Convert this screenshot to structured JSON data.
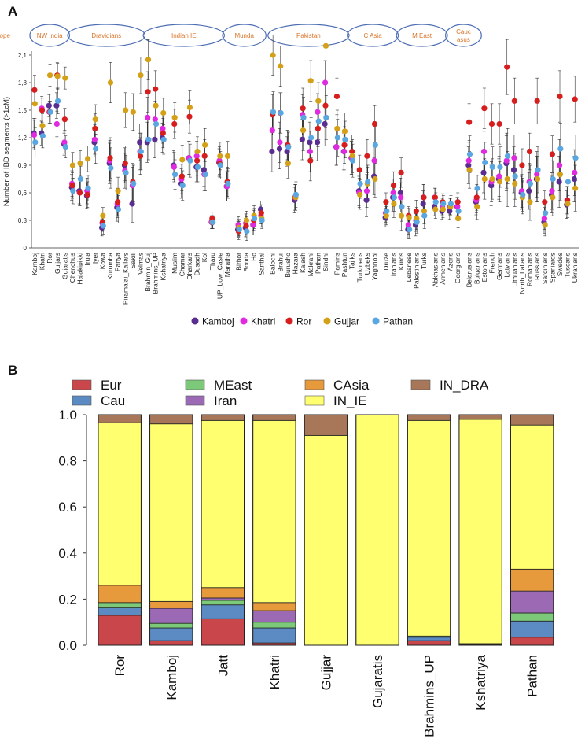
{
  "panels": {
    "a": "A",
    "b": "B"
  },
  "chart_data": [
    {
      "type": "scatter",
      "panel": "A",
      "ylabel": "Number of IBD segments (>1cM)",
      "xlabel": "",
      "ylim": [
        0,
        2.1
      ],
      "yticks": [
        "0",
        "0,3",
        "0,6",
        "0,9",
        "1,2",
        "1,5",
        "1,8",
        "2,1"
      ],
      "region_labels": [
        {
          "label": "NW India",
          "from": 0,
          "to": 4
        },
        {
          "label": "Dravidians",
          "from": 5,
          "to": 14
        },
        {
          "label": "Indian IE",
          "from": 15,
          "to": 24
        },
        {
          "label": "Munda",
          "from": 25,
          "to": 29
        },
        {
          "label": "Pakistan",
          "from": 30,
          "to": 39
        },
        {
          "label": "C Asia",
          "from": 40,
          "to": 45
        },
        {
          "label": "M East",
          "from": 46,
          "to": 51
        },
        {
          "label": "Caucasus",
          "from": 52,
          "to": 55
        },
        {
          "label": "Europe",
          "from": 56,
          "to": 77
        }
      ],
      "categories": [
        "Kamboj",
        "Khatri",
        "Ror",
        "Gujjars",
        "Gujaratis",
        "Chenchus",
        "Halakipikki",
        "Irula",
        "Iyer",
        "Kowa",
        "Kurumba",
        "Panya",
        "Piramalai_Kallars",
        "Sakili",
        "Velmas",
        "Brahmin_Guj",
        "Brahmins_UP",
        "Kshatriya",
        "Muslim",
        "Chamar",
        "Dharkars",
        "Dusadh",
        "Kol",
        "Tharu",
        "UP_Low_Caste",
        "Maratha",
        "Birhor",
        "Bonda",
        "Ho",
        "Santhal",
        "Balochi",
        "Brahui",
        "Burusho",
        "Hazara",
        "Kalash",
        "Makrani",
        "Pathan",
        "Sindhi",
        "Pamiris",
        "Pashtun",
        "Tajiks",
        "Turkmens",
        "Uzbeks",
        "Yaghnobi",
        "Druze",
        "Iranians",
        "Kurds",
        "Lebanese",
        "Palestinians",
        "Turks",
        "Abkhasians",
        "Armenians",
        "Azeris",
        "Georgians",
        "Belarusians",
        "Bulgarians",
        "Estonians",
        "French",
        "Germans",
        "Latvians",
        "Lithuanians",
        "North_Italians",
        "Romanians",
        "Russians",
        "Sardinians",
        "Spaniards",
        "Swedes",
        "Tuscans",
        "Ukranians"
      ],
      "category_x": [
        0,
        1,
        2,
        3,
        4,
        5,
        6,
        7,
        8,
        9,
        10,
        11,
        12,
        13,
        14,
        15,
        16,
        17,
        18.5,
        19.5,
        20.5,
        21.5,
        22.5,
        23.5,
        24.5,
        25.5,
        27,
        28,
        29,
        30,
        31.5,
        32.5,
        33.5,
        34.5,
        35.5,
        36.5,
        37.5,
        38.5,
        40,
        41,
        42,
        43,
        44,
        45,
        46.5,
        47.5,
        48.5,
        49.5,
        50.5,
        51.5,
        53,
        54,
        55,
        56,
        57.5,
        58.5,
        59.5,
        60.5,
        61.5,
        62.5,
        63.5,
        64.5,
        65.5,
        66.5,
        67.5,
        68.5,
        69.5,
        70.5,
        71.5
      ],
      "series": [
        {
          "name": "Kamboj",
          "color": "#5a2d91",
          "values": [
            1.25,
            1.25,
            1.55,
            1.55,
            1.13,
            0.66,
            0.62,
            0.57,
            1.15,
            0.22,
            0.92,
            0.44,
            0.9,
            0.48,
            1.15,
            1.15,
            1.18,
            1.2,
            0.9,
            0.7,
            0.98,
            0.88,
            0.85,
            0.28,
            0.93,
            0.67,
            0.2,
            0.22,
            0.25,
            0.42,
            1.05,
            1.08,
            1.05,
            0.52,
            1.18,
            1.15,
            1.15,
            1.35,
            1.1,
            1.05,
            0.98,
            0.62,
            0.52,
            0.78,
            0.33,
            0.55,
            0.6,
            0.2,
            0.25,
            0.48,
            0.45,
            0.4,
            0.4,
            0.45,
            0.9,
            0.5,
            0.82,
            0.68,
            0.75,
            0.92,
            0.85,
            0.6,
            0.62,
            0.75,
            0.28,
            0.58,
            0.72,
            0.47,
            0.75
          ]
        },
        {
          "name": "Khatri",
          "color": "#e02ae0",
          "values": [
            1.23,
            1.52,
            1.48,
            1.35,
            1.15,
            0.7,
            0.6,
            0.62,
            1.18,
            0.27,
            0.95,
            0.48,
            0.84,
            0.68,
            1.05,
            1.42,
            1.4,
            1.3,
            0.88,
            0.75,
            0.98,
            1.0,
            0.8,
            0.28,
            0.95,
            0.67,
            0.25,
            0.27,
            0.25,
            0.35,
            1.28,
            1.15,
            1.12,
            0.55,
            1.45,
            1.05,
            1.48,
            1.8,
            1.1,
            1.05,
            0.98,
            0.6,
            0.62,
            0.95,
            0.38,
            0.6,
            0.55,
            0.25,
            0.3,
            0.55,
            0.55,
            0.45,
            0.45,
            0.45,
            0.95,
            0.52,
            1.05,
            0.72,
            0.78,
            0.95,
            0.98,
            0.62,
            0.72,
            0.8,
            0.32,
            0.62,
            0.9,
            0.52,
            0.82
          ]
        },
        {
          "name": "Ror",
          "color": "#d61e1e",
          "values": [
            1.72,
            1.5,
            1.48,
            1.88,
            1.4,
            0.68,
            0.6,
            0.58,
            1.3,
            0.28,
            0.98,
            0.5,
            0.92,
            0.72,
            1.0,
            1.7,
            1.73,
            1.25,
            1.35,
            0.78,
            1.43,
            0.95,
            1.0,
            0.32,
            0.92,
            0.72,
            0.18,
            0.24,
            0.3,
            0.38,
            1.45,
            1.47,
            1.12,
            0.55,
            1.52,
            0.95,
            1.3,
            1.55,
            1.65,
            1.12,
            1.05,
            0.85,
            1.0,
            1.35,
            0.5,
            0.68,
            0.82,
            0.35,
            0.4,
            0.55,
            0.55,
            0.5,
            0.45,
            0.5,
            1.37,
            0.55,
            1.52,
            1.35,
            1.35,
            1.97,
            1.6,
            0.9,
            1.05,
            1.6,
            0.5,
            1.02,
            1.65,
            0.52,
            1.62
          ]
        },
        {
          "name": "Gujjar",
          "color": "#d4a017",
          "values": [
            1.57,
            1.33,
            1.88,
            1.87,
            1.85,
            0.9,
            0.92,
            0.97,
            1.4,
            0.35,
            1.8,
            0.62,
            1.5,
            1.48,
            1.88,
            2.05,
            1.55,
            1.47,
            1.42,
            0.96,
            1.53,
            1.05,
            1.12,
            0.28,
            1.0,
            1.0,
            0.22,
            0.3,
            0.35,
            0.32,
            2.1,
            1.98,
            0.92,
            0.55,
            1.28,
            1.82,
            1.6,
            2.2,
            1.3,
            1.27,
            1.0,
            0.58,
            0.7,
            0.75,
            0.35,
            0.48,
            0.35,
            0.33,
            0.32,
            0.4,
            0.42,
            0.42,
            0.45,
            0.32,
            0.85,
            0.45,
            0.75,
            0.75,
            0.72,
            0.75,
            0.7,
            0.55,
            0.5,
            0.75,
            0.25,
            0.55,
            0.8,
            0.48,
            0.65
          ]
        },
        {
          "name": "Pathan",
          "color": "#5aa6e0",
          "values": [
            1.15,
            1.22,
            1.48,
            1.6,
            1.1,
            0.62,
            0.75,
            0.65,
            1.08,
            0.24,
            0.87,
            0.42,
            0.82,
            0.7,
            1.05,
            1.18,
            1.35,
            1.18,
            0.8,
            0.68,
            0.95,
            0.88,
            0.8,
            0.28,
            0.9,
            0.7,
            0.2,
            0.18,
            0.32,
            0.3,
            1.48,
            1.47,
            1.1,
            0.58,
            1.42,
            1.2,
            1.38,
            1.42,
            1.2,
            1.18,
            0.95,
            0.7,
            0.72,
            1.12,
            0.4,
            0.55,
            0.45,
            0.2,
            0.28,
            0.35,
            0.5,
            0.48,
            0.48,
            0.4,
            1.02,
            0.65,
            0.93,
            0.88,
            0.88,
            1.0,
            0.78,
            0.58,
            0.7,
            0.85,
            0.38,
            0.75,
            1.08,
            0.72,
            0.98
          ]
        }
      ],
      "errors": [
        0.16,
        0.13,
        0.12,
        0.14,
        0.12,
        0.14,
        0.14,
        0.14,
        0.16,
        0.09,
        0.22,
        0.15,
        0.19,
        0.2,
        0.2,
        0.22,
        0.2,
        0.16,
        0.16,
        0.16,
        0.18,
        0.16,
        0.18,
        0.07,
        0.15,
        0.16,
        0.09,
        0.1,
        0.11,
        0.09,
        0.22,
        0.22,
        0.16,
        0.14,
        0.22,
        0.22,
        0.2,
        0.24,
        0.2,
        0.2,
        0.18,
        0.16,
        0.18,
        0.2,
        0.1,
        0.15,
        0.16,
        0.1,
        0.12,
        0.14,
        0.1,
        0.09,
        0.09,
        0.1,
        0.2,
        0.14,
        0.22,
        0.22,
        0.22,
        0.3,
        0.25,
        0.18,
        0.2,
        0.25,
        0.12,
        0.2,
        0.28,
        0.15,
        0.25
      ],
      "legend": [
        "Kamboj",
        "Khatri",
        "Ror",
        "Gujjar",
        "Pathan"
      ],
      "legend_position": "bottom"
    },
    {
      "type": "bar",
      "panel": "B",
      "stacked": true,
      "ylim": [
        0,
        1
      ],
      "yticks": [
        "0.0",
        "0.2",
        "0.4",
        "0.6",
        "0.8",
        "1.0"
      ],
      "categories": [
        "Ror",
        "Kamboj",
        "Jatt",
        "Khatri",
        "Gujjar",
        "Gujaratis",
        "Brahmins_UP",
        "Kshatriya",
        "Pathan"
      ],
      "series": [
        {
          "name": "Eur",
          "color": "#c9474b",
          "values": [
            0.13,
            0.02,
            0.115,
            0.01,
            0,
            0,
            0.02,
            0.003,
            0.035
          ]
        },
        {
          "name": "Cau",
          "color": "#5b8bc2",
          "values": [
            0.035,
            0.055,
            0.06,
            0.065,
            0,
            0,
            0.015,
            0.002,
            0.07
          ]
        },
        {
          "name": "MEast",
          "color": "#7cc97a",
          "values": [
            0.02,
            0.02,
            0.02,
            0.025,
            0,
            0,
            0.005,
            0.002,
            0.035
          ]
        },
        {
          "name": "Iran",
          "color": "#9c6ab5",
          "values": [
            0,
            0.065,
            0.01,
            0.05,
            0,
            0,
            0,
            0,
            0.095
          ]
        },
        {
          "name": "CAsia",
          "color": "#e69a3c",
          "values": [
            0.075,
            0.03,
            0.045,
            0.035,
            0,
            0,
            0,
            0,
            0.095
          ]
        },
        {
          "name": "IN_IE",
          "color": "#ffff70",
          "values": [
            0.705,
            0.77,
            0.725,
            0.79,
            0.91,
            1.0,
            0.935,
            0.973,
            0.625
          ]
        },
        {
          "name": "IN_DRA",
          "color": "#a8775a",
          "values": [
            0.035,
            0.04,
            0.025,
            0.025,
            0.09,
            0,
            0.025,
            0.02,
            0.045
          ]
        }
      ],
      "legend_position": "top"
    }
  ]
}
